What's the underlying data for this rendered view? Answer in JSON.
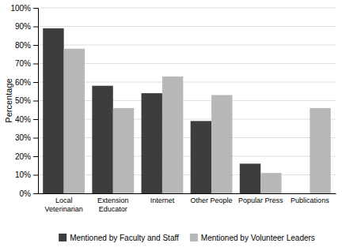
{
  "chart_data": {
    "type": "bar",
    "categories": [
      "Local\nVeterinarian",
      "Extension\nEducator",
      "Internet",
      "Other People",
      "Popular Press",
      "Publications"
    ],
    "series": [
      {
        "name": "Mentioned by Faculty and Staff",
        "color": "#3d3d3d",
        "values": [
          89,
          58,
          54,
          39,
          16,
          0
        ]
      },
      {
        "name": "Mentioned by Volunteer Leaders",
        "color": "#b8b8b8",
        "values": [
          78,
          46,
          63,
          53,
          11,
          46
        ]
      }
    ],
    "ylabel": "Percentage",
    "ylim": [
      0,
      100
    ],
    "yticks": [
      {
        "value": 0,
        "label": "0%"
      },
      {
        "value": 10,
        "label": "10%"
      },
      {
        "value": 20,
        "label": "20%"
      },
      {
        "value": 30,
        "label": "30%"
      },
      {
        "value": 40,
        "label": "40%"
      },
      {
        "value": 50,
        "label": "50%"
      },
      {
        "value": 60,
        "label": "60%"
      },
      {
        "value": 70,
        "label": "70%"
      },
      {
        "value": 80,
        "label": "80%"
      },
      {
        "value": 90,
        "label": "90%"
      },
      {
        "value": 100,
        "label": "100%"
      }
    ],
    "grid": true,
    "legend": "bottom"
  }
}
